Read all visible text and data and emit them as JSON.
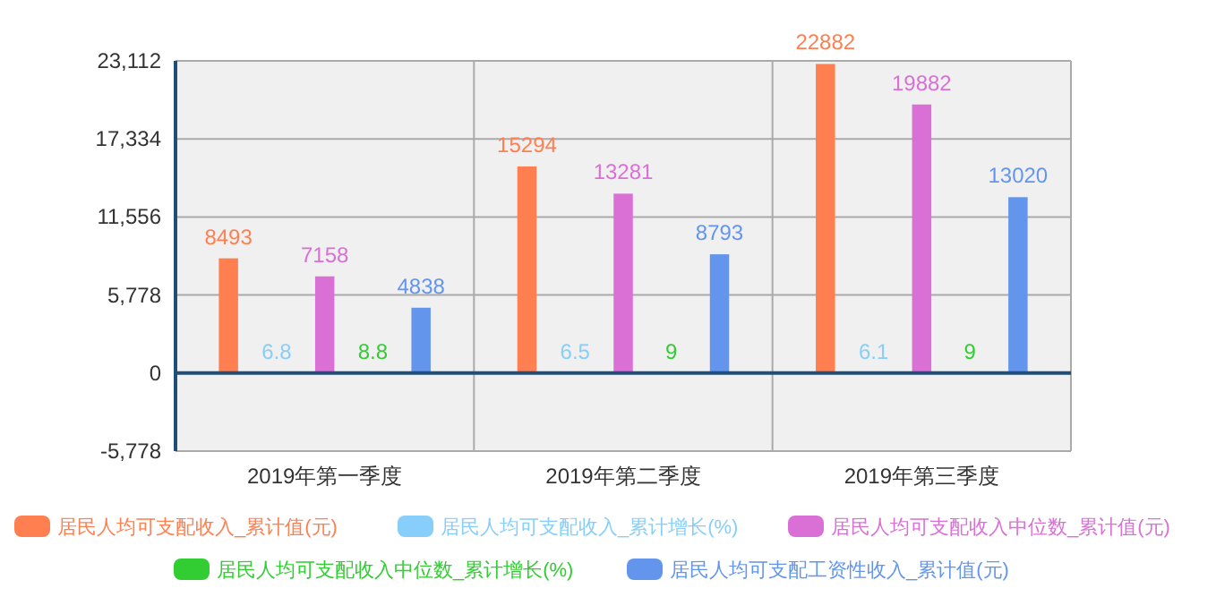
{
  "chart_data": {
    "type": "bar",
    "categories": [
      "2019年第一季度",
      "2019年第二季度",
      "2019年第三季度"
    ],
    "series": [
      {
        "name": "居民人均可支配收入_累计值(元)",
        "color": "#ff7f50",
        "values": [
          8493,
          15294,
          22882
        ]
      },
      {
        "name": "居民人均可支配收入_累计增长(%)",
        "color": "#87cefa",
        "values": [
          6.8,
          6.5,
          6.1
        ]
      },
      {
        "name": "居民人均可支配收入中位数_累计值(元)",
        "color": "#da70d6",
        "values": [
          7158,
          13281,
          19882
        ]
      },
      {
        "name": "居民人均可支配收入中位数_累计增长(%)",
        "color": "#32cd32",
        "values": [
          8.8,
          9,
          9
        ]
      },
      {
        "name": "居民人均可支配工资性收入_累计值(元)",
        "color": "#6495ed",
        "values": [
          4838,
          8793,
          13020
        ]
      }
    ],
    "ylim": [
      -5778,
      23112
    ],
    "yticks": [
      {
        "value": -5778,
        "label": "-5,778"
      },
      0,
      {
        "value": 5778,
        "label": "5,778"
      },
      {
        "value": 11556,
        "label": "11,556"
      },
      {
        "value": 17334,
        "label": "17,334"
      },
      {
        "value": 23112,
        "label": "23,112"
      }
    ],
    "ref_lines": [
      {
        "axis": "y",
        "value": 0,
        "color": "#1f4e79"
      }
    ],
    "grid": true,
    "legend": "bottom",
    "data_labels": true
  }
}
